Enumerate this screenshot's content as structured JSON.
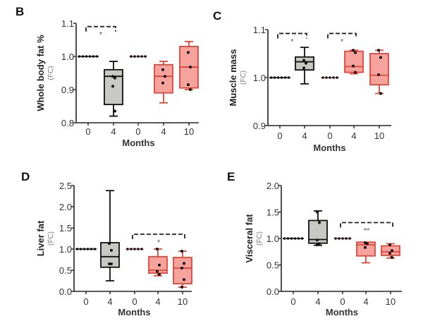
{
  "colors": {
    "control_stroke": "#111111",
    "control_fill": "#c9c9c3",
    "treated_stroke": "#e0473b",
    "treated_fill": "#f5a39c",
    "axis": "#222222",
    "tick_text": "#333333",
    "unit_text": "#777777"
  },
  "chart_data": [
    {
      "type": "box",
      "panel": "B",
      "ylabel": "Whole body fat %",
      "yunit": "(FC)",
      "xlabel": "Months",
      "ylim": [
        0.8,
        1.1
      ],
      "yticks": [
        0.8,
        0.9,
        1.0,
        1.1
      ],
      "ytick_labels": [
        "0.8",
        "0.9",
        "1.0",
        "1.1"
      ],
      "categories": [
        "0",
        "4",
        "0",
        "4",
        "10"
      ],
      "groups": [
        {
          "group": "control",
          "flat": 1.0,
          "n": 6
        },
        {
          "group": "control",
          "min": 0.82,
          "q1": 0.855,
          "median": 0.94,
          "q3": 0.96,
          "max": 0.985,
          "points": [
            0.94,
            0.935,
            0.91,
            0.835
          ]
        },
        {
          "group": "treated",
          "flat": 1.0,
          "n": 5
        },
        {
          "group": "treated",
          "min": 0.86,
          "q1": 0.89,
          "median": 0.94,
          "q3": 0.975,
          "max": 0.985,
          "points": [
            0.96,
            0.94,
            0.92
          ]
        },
        {
          "group": "treated",
          "min": 0.9,
          "q1": 0.905,
          "median": 0.968,
          "q3": 1.03,
          "max": 1.045,
          "points": [
            1.012,
            0.968,
            0.915,
            0.9
          ]
        }
      ],
      "significance": [
        {
          "from": 0,
          "to": 1,
          "label": "*",
          "level": 1.09
        }
      ]
    },
    {
      "type": "box",
      "panel": "C",
      "ylabel": "Muscle mass",
      "yunit": "(FC)",
      "xlabel": "Months",
      "ylim": [
        0.9,
        1.1
      ],
      "yticks": [
        0.9,
        1.0,
        1.1
      ],
      "ytick_labels": [
        "0.9",
        "1.0",
        "1.1"
      ],
      "categories": [
        "0",
        "4",
        "0",
        "4",
        "10"
      ],
      "groups": [
        {
          "group": "control",
          "flat": 1.0,
          "n": 6
        },
        {
          "group": "control",
          "min": 0.987,
          "q1": 1.016,
          "median": 1.033,
          "q3": 1.043,
          "max": 1.063,
          "points": [
            1.036,
            1.03,
            1.02
          ]
        },
        {
          "group": "treated",
          "flat": 1.0,
          "n": 5
        },
        {
          "group": "treated",
          "min": 1.008,
          "q1": 1.011,
          "median": 1.023,
          "q3": 1.055,
          "max": 1.057,
          "points": [
            1.057,
            1.052,
            1.024,
            1.011
          ]
        },
        {
          "group": "treated",
          "min": 0.967,
          "q1": 0.985,
          "median": 1.005,
          "q3": 1.05,
          "max": 1.057,
          "points": [
            1.057,
            1.042,
            1.006,
            0.967
          ]
        }
      ],
      "significance": [
        {
          "from": 0,
          "to": 1,
          "label": "*",
          "level": 1.092
        },
        {
          "from": 2,
          "to": 3,
          "label": "*",
          "level": 1.092
        }
      ]
    },
    {
      "type": "box",
      "panel": "D",
      "ylabel": "Liver fat",
      "yunit": "(FC)",
      "xlabel": "Months",
      "ylim": [
        0.0,
        2.5
      ],
      "yticks": [
        0,
        0.5,
        1.0,
        1.5,
        2.0,
        2.5
      ],
      "ytick_labels": [
        "0.0",
        "0.5",
        "1.0",
        "1.5",
        "2.0",
        "2.5"
      ],
      "categories": [
        "0",
        "4",
        "0",
        "4",
        "10"
      ],
      "groups": [
        {
          "group": "control",
          "flat": 1.0,
          "n": 6
        },
        {
          "group": "control",
          "min": 0.25,
          "q1": 0.57,
          "median": 0.82,
          "q3": 1.15,
          "max": 2.38,
          "points": [
            1.13,
            0.97,
            0.65,
            0.65
          ]
        },
        {
          "group": "treated",
          "flat": 1.0,
          "n": 5
        },
        {
          "group": "treated",
          "min": 0.37,
          "q1": 0.43,
          "median": 0.5,
          "q3": 0.82,
          "max": 1.0,
          "points": [
            1.0,
            0.62,
            0.47,
            0.4
          ]
        },
        {
          "group": "treated",
          "min": 0.1,
          "q1": 0.18,
          "median": 0.55,
          "q3": 0.8,
          "max": 0.95,
          "points": [
            0.95,
            0.66,
            0.55,
            0.28,
            0.1
          ]
        }
      ],
      "significance": [
        {
          "from": 2,
          "to": 4,
          "label": "*",
          "level": 1.35
        }
      ]
    },
    {
      "type": "box",
      "panel": "E",
      "ylabel": "Visceral fat",
      "yunit": "(FC)",
      "xlabel": "Months",
      "ylim": [
        0.0,
        2.0
      ],
      "yticks": [
        0,
        0.5,
        1.0,
        1.5,
        2.0
      ],
      "ytick_labels": [
        "0.0",
        "0.5",
        "1.0",
        "1.5",
        "2.0"
      ],
      "categories": [
        "0",
        "4",
        "0",
        "4",
        "10"
      ],
      "groups": [
        {
          "group": "control",
          "flat": 1.0,
          "n": 6
        },
        {
          "group": "control",
          "min": 0.87,
          "q1": 0.91,
          "median": 0.98,
          "q3": 1.34,
          "max": 1.52,
          "points": [
            1.5,
            1.3,
            0.97,
            0.9,
            0.88
          ]
        },
        {
          "group": "treated",
          "flat": 1.0,
          "n": 5
        },
        {
          "group": "treated",
          "min": 0.54,
          "q1": 0.67,
          "median": 0.88,
          "q3": 0.93,
          "max": 0.93,
          "points": [
            0.92,
            0.9,
            0.83
          ]
        },
        {
          "group": "treated",
          "min": 0.63,
          "q1": 0.68,
          "median": 0.75,
          "q3": 0.86,
          "max": 0.9,
          "points": [
            0.88,
            0.77,
            0.72,
            0.64
          ]
        }
      ],
      "significance": [
        {
          "from": 2,
          "to": 4,
          "label": "**",
          "level": 1.3
        }
      ]
    }
  ]
}
